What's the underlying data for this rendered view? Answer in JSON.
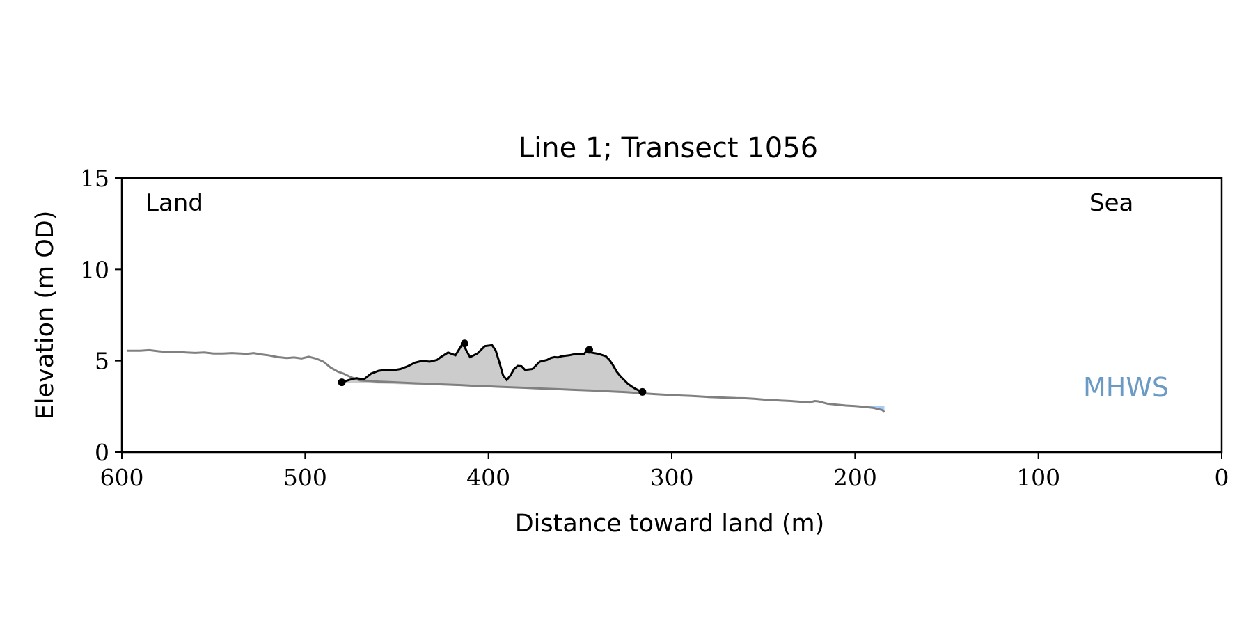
{
  "chart_data": {
    "type": "line",
    "title": "Line 1; Transect 1056",
    "xlabel": "Distance toward land (m)",
    "ylabel": "Elevation (m OD)",
    "xlim": [
      600,
      0
    ],
    "ylim": [
      0,
      15
    ],
    "x_ticks": [
      600,
      500,
      400,
      300,
      200,
      100,
      0
    ],
    "y_ticks": [
      0,
      5,
      10,
      15
    ],
    "grid": false,
    "legend": "none",
    "annotations": {
      "land_label": "Land",
      "sea_label": "Sea",
      "mhws_label": "MHWS"
    },
    "colors": {
      "profile": "#808080",
      "dune": "#000000",
      "dune_fill": "#cccccc",
      "mhws_fill": "#a6cdf5",
      "mhws_label": "#6b9ac4"
    },
    "series": [
      {
        "role": "profile",
        "x": [
          597,
          590,
          585,
          580,
          575,
          570,
          565,
          560,
          555,
          550,
          545,
          540,
          535,
          532,
          528,
          524,
          520,
          515,
          510,
          506,
          502,
          498,
          494,
          490,
          486,
          482,
          479,
          475,
          470,
          465,
          460,
          455,
          450,
          445,
          440,
          435,
          430,
          425,
          420,
          415,
          410,
          405,
          400,
          395,
          390,
          385,
          380,
          375,
          370,
          365,
          360,
          355,
          350,
          345,
          340,
          335,
          330,
          325,
          320,
          316,
          310,
          305,
          300,
          295,
          290,
          285,
          280,
          275,
          270,
          265,
          260,
          255,
          250,
          245,
          240,
          235,
          230,
          225,
          222,
          220,
          215,
          210,
          205,
          200,
          195,
          190,
          185,
          184
        ],
        "y": [
          5.55,
          5.55,
          5.58,
          5.52,
          5.48,
          5.5,
          5.45,
          5.43,
          5.45,
          5.4,
          5.4,
          5.42,
          5.4,
          5.38,
          5.42,
          5.35,
          5.3,
          5.2,
          5.15,
          5.18,
          5.13,
          5.22,
          5.12,
          4.95,
          4.62,
          4.4,
          4.3,
          4.1,
          3.92,
          3.9,
          3.86,
          3.84,
          3.82,
          3.79,
          3.77,
          3.75,
          3.73,
          3.71,
          3.69,
          3.67,
          3.64,
          3.62,
          3.6,
          3.58,
          3.56,
          3.54,
          3.52,
          3.5,
          3.48,
          3.46,
          3.44,
          3.42,
          3.4,
          3.38,
          3.36,
          3.33,
          3.31,
          3.28,
          3.25,
          3.22,
          3.18,
          3.15,
          3.12,
          3.1,
          3.08,
          3.05,
          3.02,
          3.0,
          2.98,
          2.96,
          2.95,
          2.92,
          2.88,
          2.85,
          2.82,
          2.8,
          2.76,
          2.72,
          2.8,
          2.78,
          2.65,
          2.6,
          2.55,
          2.52,
          2.48,
          2.42,
          2.3,
          2.18
        ]
      },
      {
        "role": "dune",
        "x": [
          480,
          476,
          472,
          468,
          464,
          460,
          456,
          452,
          448,
          444,
          440,
          436,
          432,
          428,
          426,
          422,
          418,
          414,
          412,
          410,
          406,
          402,
          398,
          396,
          394,
          392,
          390,
          388,
          386,
          384,
          382,
          380,
          376,
          372,
          368,
          366,
          364,
          362,
          360,
          356,
          352,
          348,
          346,
          344,
          340,
          336,
          334,
          332,
          330,
          328,
          326,
          324,
          322,
          320,
          318,
          316
        ],
        "y": [
          3.82,
          3.95,
          4.05,
          3.98,
          4.3,
          4.45,
          4.5,
          4.48,
          4.55,
          4.7,
          4.9,
          5.0,
          4.95,
          5.05,
          5.2,
          5.45,
          5.3,
          5.95,
          5.55,
          5.2,
          5.4,
          5.8,
          5.85,
          5.55,
          4.9,
          4.2,
          3.95,
          4.2,
          4.55,
          4.72,
          4.7,
          4.5,
          4.55,
          4.95,
          5.05,
          5.15,
          5.2,
          5.18,
          5.25,
          5.3,
          5.38,
          5.35,
          5.6,
          5.45,
          5.38,
          5.25,
          5.05,
          4.75,
          4.4,
          4.15,
          3.95,
          3.75,
          3.6,
          3.48,
          3.38,
          3.3
        ]
      }
    ],
    "markers": {
      "x": [
        480,
        413,
        345,
        316
      ],
      "y": [
        3.82,
        5.95,
        5.6,
        3.3
      ]
    },
    "mhws": {
      "x_start": 197,
      "x_end": 184,
      "level": 2.55
    }
  }
}
